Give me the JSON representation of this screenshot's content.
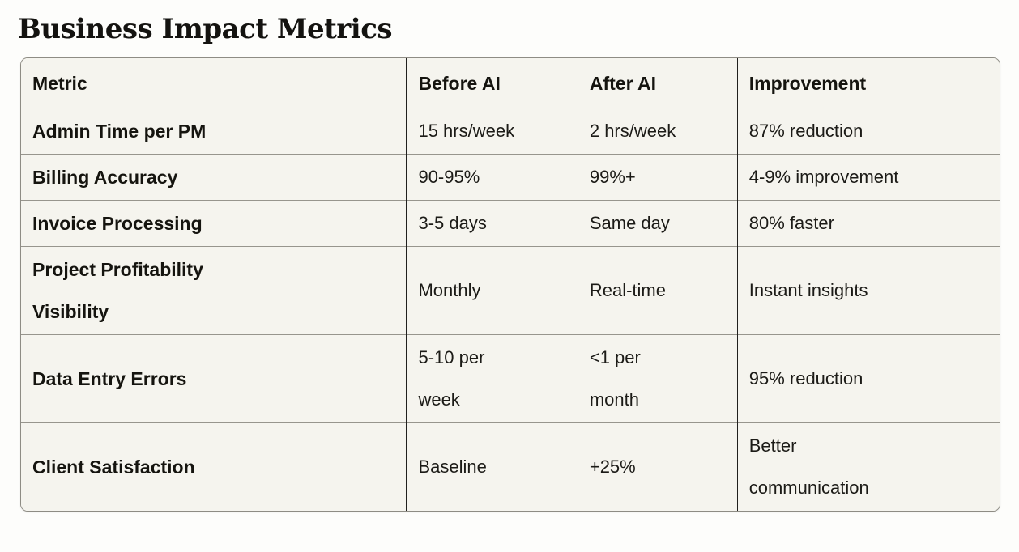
{
  "page": {
    "title": "Business Impact Metrics"
  },
  "table": {
    "headers": [
      "Metric",
      "Before AI",
      "After AI",
      "Improvement"
    ],
    "rows": [
      {
        "metric": "Admin Time per PM",
        "before": "15 hrs/week",
        "after": "2 hrs/week",
        "improvement": "87% reduction"
      },
      {
        "metric": "Billing Accuracy",
        "before": "90-95%",
        "after": "99%+",
        "improvement": "4-9% improvement"
      },
      {
        "metric": "Invoice Processing",
        "before": "3-5 days",
        "after": "Same day",
        "improvement": "80% faster"
      },
      {
        "metric": "Project Profitability\nVisibility",
        "before": "Monthly",
        "after": "Real-time",
        "improvement": "Instant insights"
      },
      {
        "metric": "Data Entry Errors",
        "before": "5-10 per\nweek",
        "after": "<1 per\nmonth",
        "improvement": "95% reduction"
      },
      {
        "metric": "Client Satisfaction",
        "before": "Baseline",
        "after": "+25%",
        "improvement": "Better\ncommunication"
      }
    ]
  },
  "colors": {
    "page_background": "#fdfdfb",
    "cell_background": "#f5f4ee",
    "outer_border": "#8e8c84",
    "horizontal_divider": "#97958d",
    "vertical_divider": "#21201e",
    "text": "#15140f"
  }
}
